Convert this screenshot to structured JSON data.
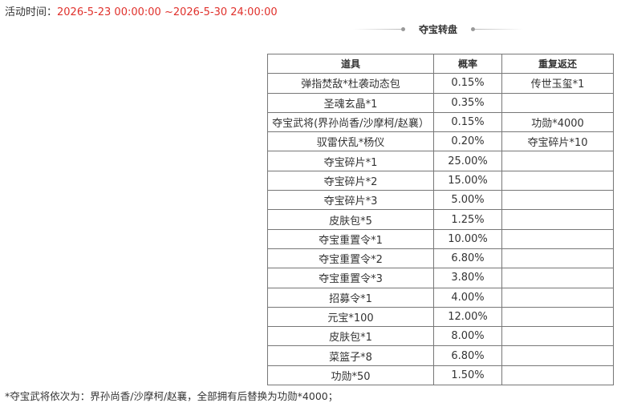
{
  "header": {
    "label": "活动时间：",
    "time": "2026-5-23 00:00:00 ~2026-5-30 24:00:00"
  },
  "section": {
    "title": "夺宝转盘"
  },
  "table": {
    "columns": [
      "道具",
      "概率",
      "重复返还"
    ],
    "rows": [
      [
        "弹指焚敌*杜袭动态包",
        "0.15%",
        "传世玉玺*1"
      ],
      [
        "圣魂玄晶*1",
        "0.35%"
      ],
      [
        "夺宝武将(界孙尚香/沙摩柯/赵襄）",
        "0.15%",
        "功勋*4000"
      ],
      [
        "驭雷伏乱*杨仪",
        "0.20%",
        "夺宝碎片*10"
      ],
      [
        "夺宝碎片*1",
        "25.00%"
      ],
      [
        "夺宝碎片*2",
        "15.00%"
      ],
      [
        "夺宝碎片*3",
        "5.00%"
      ],
      [
        "皮肤包*5",
        "1.25%"
      ],
      [
        "夺宝重置令*1",
        "10.00%"
      ],
      [
        "夺宝重置令*2",
        "6.80%"
      ],
      [
        "夺宝重置令*3",
        "3.80%"
      ],
      [
        "招募令*1",
        "4.00%"
      ],
      [
        "元宝*100",
        "12.00%"
      ],
      [
        "皮肤包*1",
        "8.00%"
      ],
      [
        "菜篮子*8",
        "6.80%"
      ],
      [
        "功勋*50",
        "1.50%"
      ]
    ]
  },
  "footnote": "*夺宝武将依次为：界孙尚香/沙摩柯/赵襄，全部拥有后替换为功勋*4000；"
}
